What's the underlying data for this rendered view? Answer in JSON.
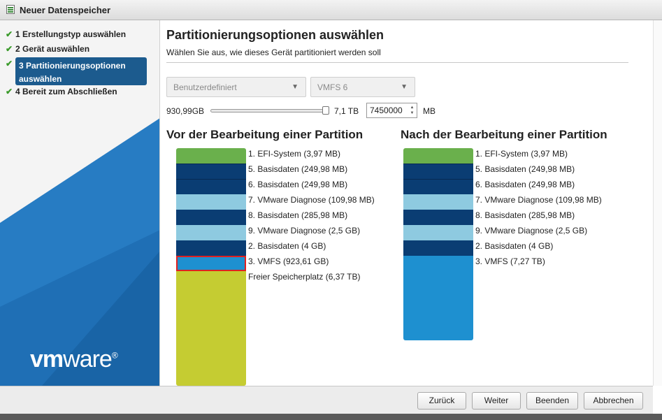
{
  "window": {
    "title": "Neuer Datenspeicher"
  },
  "steps": [
    {
      "label": "1 Erstellungstyp auswählen",
      "done": true
    },
    {
      "label": "2 Gerät auswählen",
      "done": true
    },
    {
      "label_line1": "3 Partitionierungsoptionen",
      "label_line2": "auswählen",
      "done": true,
      "active": true
    },
    {
      "label": "4 Bereit zum Abschließen",
      "done": true
    }
  ],
  "check_glyph": "✔",
  "logo": {
    "bold": "vm",
    "regular": "ware",
    "mark": "®"
  },
  "page": {
    "title": "Partitionierungsoptionen auswählen",
    "subtitle": "Wählen Sie aus, wie dieses Gerät partitioniert werden soll"
  },
  "controls": {
    "partition_mode": "Benutzerdefiniert",
    "fs_version": "VMFS 6",
    "size_min": "930,99GB",
    "size_max": "7,1 TB",
    "size_value": "7450000",
    "size_unit": "MB",
    "slider_fraction": 1.0
  },
  "before": {
    "title": "Vor der Bearbeitung einer Partition",
    "labels": [
      "1. EFI-System  (3,97 MB)",
      "5. Basisdaten  (249,98 MB)",
      "6. Basisdaten  (249,98 MB)",
      "7. VMware Diagnose  (109,98 MB)",
      "8. Basisdaten  (285,98 MB)",
      "9. VMware Diagnose  (2,5 GB)",
      "2. Basisdaten  (4 GB)",
      "3. VMFS  (923,61 GB)",
      "Freier Speicherplatz  (6,37 TB)"
    ]
  },
  "after": {
    "title": "Nach der Bearbeitung einer Partition",
    "labels": [
      "1. EFI-System  (3,97 MB)",
      "5. Basisdaten  (249,98 MB)",
      "6. Basisdaten  (249,98 MB)",
      "7. VMware Diagnose  (109,98 MB)",
      "8. Basisdaten  (285,98 MB)",
      "9. VMware Diagnose  (2,5 GB)",
      "2. Basisdaten  (4 GB)",
      "3. VMFS  (7,27 TB)"
    ]
  },
  "colors": {
    "efi": "#6ab04c",
    "basis": "#0a3d73",
    "diagnose": "#8ecae0",
    "vmfs": "#1e90d0",
    "free": "#c5cc32",
    "selected_border": "#e02020"
  },
  "buttons": {
    "back": "Zurück",
    "next": "Weiter",
    "finish": "Beenden",
    "cancel": "Abbrechen"
  }
}
